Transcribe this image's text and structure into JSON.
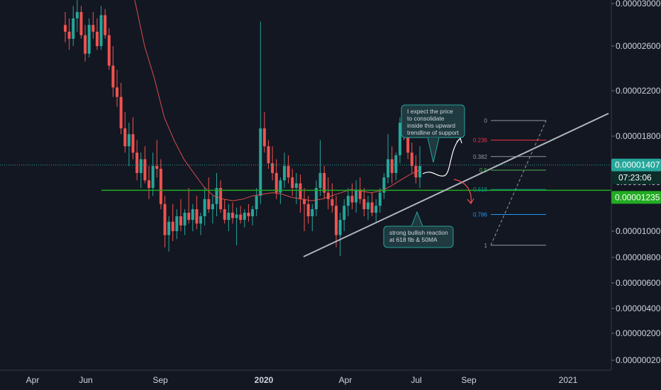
{
  "chart_data": {
    "type": "candlestick",
    "y_axis": {
      "labels": [
        "0.00003000",
        "0.00002600",
        "0.00002200",
        "0.00001800",
        "0.00001400",
        "0.00001000",
        "0.00000800",
        "0.00000600",
        "0.00000400",
        "0.00000200",
        "0.00000020"
      ],
      "values": [
        3e-05,
        2.6e-05,
        2.2e-05,
        1.8e-05,
        1.4e-05,
        1e-05,
        8e-06,
        6e-06,
        4e-06,
        2e-06,
        2e-07
      ],
      "scale": "log"
    },
    "x_axis": {
      "labels": [
        "Apr",
        "Jun",
        "Sep",
        "2020",
        "Apr",
        "Jul",
        "Sep",
        "2021"
      ],
      "bold": [
        false,
        false,
        false,
        true,
        false,
        false,
        false,
        false
      ]
    },
    "grid": false,
    "colors": {
      "background": "#131722",
      "up": "#26a69a",
      "down": "#ef5350",
      "ma": "#ef5350",
      "support": "#b2b5be",
      "level_green": "#22ab22",
      "price_teal": "#26a69a"
    },
    "current_price": {
      "value": 1.407e-05,
      "label": "0.00001407",
      "countdown": "07:23:06"
    },
    "horizontal_level": {
      "value": 1.235e-05,
      "label": "0.00001235"
    },
    "fibonacci": {
      "levels": [
        {
          "ratio": "0",
          "value": 1.77e-05,
          "color": "#9598a1"
        },
        {
          "ratio": "0.236",
          "value": 1.6e-05,
          "color": "#f23645"
        },
        {
          "ratio": "0.382",
          "value": 1.47e-05,
          "color": "#9598a1"
        },
        {
          "ratio": "0.5",
          "value": 1.37e-05,
          "color": "#4caf50"
        },
        {
          "ratio": "0.618",
          "value": 1.24e-05,
          "color": "#089981"
        },
        {
          "ratio": "0.786",
          "value": 1.09e-05,
          "color": "#2196f3"
        },
        {
          "ratio": "1",
          "value": 9.3e-06,
          "color": "#9598a1"
        }
      ]
    },
    "annotations": [
      {
        "text": [
          "I expect the price",
          "to consolidate",
          "inside this upward",
          "trendline of support"
        ]
      },
      {
        "text": [
          "strong bullish reaction",
          "at 618 fib & 50MA"
        ]
      }
    ],
    "candles": [
      [
        2.9e-05,
        3.1e-05,
        2.65e-05,
        2.8e-05
      ],
      [
        2.8e-05,
        3e-05,
        2.55e-05,
        2.7e-05
      ],
      [
        2.7e-05,
        3.2e-05,
        2.6e-05,
        3e-05
      ],
      [
        3e-05,
        3.3e-05,
        2.8e-05,
        3.1e-05
      ],
      [
        3.1e-05,
        3.2e-05,
        2.7e-05,
        2.75e-05
      ],
      [
        2.75e-05,
        2.9e-05,
        2.4e-05,
        2.5e-05
      ],
      [
        2.5e-05,
        3e-05,
        2.45e-05,
        2.9e-05
      ],
      [
        2.9e-05,
        3.1e-05,
        2.7e-05,
        2.8e-05
      ],
      [
        2.8e-05,
        3e-05,
        2.55e-05,
        2.6e-05
      ],
      [
        2.6e-05,
        3.2e-05,
        2.55e-05,
        3.05e-05
      ],
      [
        3.05e-05,
        3.15e-05,
        2.7e-05,
        2.75e-05
      ],
      [
        2.75e-05,
        2.85e-05,
        2.3e-05,
        2.35e-05
      ],
      [
        2.35e-05,
        2.6e-05,
        2e-05,
        2.1e-05
      ],
      [
        2.1e-05,
        2.3e-05,
        1.9e-05,
        2e-05
      ],
      [
        2e-05,
        2.15e-05,
        1.65e-05,
        1.7e-05
      ],
      [
        1.7e-05,
        1.85e-05,
        1.5e-05,
        1.55e-05
      ],
      [
        1.55e-05,
        1.75e-05,
        1.4e-05,
        1.65e-05
      ],
      [
        1.65e-05,
        1.8e-05,
        1.45e-05,
        1.5e-05
      ],
      [
        1.5e-05,
        1.6e-05,
        1.3e-05,
        1.35e-05
      ],
      [
        1.35e-05,
        1.5e-05,
        1.25e-05,
        1.45e-05
      ],
      [
        1.45e-05,
        1.55e-05,
        1.28e-05,
        1.3e-05
      ],
      [
        1.3e-05,
        1.4e-05,
        1.18e-05,
        1.25e-05
      ],
      [
        1.25e-05,
        1.5e-05,
        1.2e-05,
        1.4e-05
      ],
      [
        1.4e-05,
        1.6e-05,
        1.32e-05,
        1.38e-05
      ],
      [
        1.38e-05,
        1.45e-05,
        1.12e-05,
        1.15e-05
      ],
      [
        1.15e-05,
        1.2e-05,
        9.2e-06,
        9.8e-06
      ],
      [
        9.8e-06,
        1.08e-05,
        9e-06,
        1.05e-05
      ],
      [
        1.05e-05,
        1.15e-05,
        9.5e-06,
        1e-05
      ],
      [
        1e-05,
        1.12e-05,
        9.6e-06,
        1.08e-05
      ],
      [
        1.08e-05,
        1.18e-05,
        1e-05,
        1.03e-05
      ],
      [
        1.03e-05,
        1.12e-05,
        9.8e-06,
        1.1e-05
      ],
      [
        1.1e-05,
        1.25e-05,
        1.04e-05,
        1.06e-05
      ],
      [
        1.06e-05,
        1.15e-05,
        1e-05,
        1.12e-05
      ],
      [
        1.12e-05,
        1.2e-05,
        1.01e-05,
        1.04e-05
      ],
      [
        1.04e-05,
        1.1e-05,
        9.8e-06,
        1.08e-05
      ],
      [
        1.08e-05,
        1.25e-05,
        1.03e-05,
        1.18e-05
      ],
      [
        1.18e-05,
        1.32e-05,
        1.1e-05,
        1.12e-05
      ],
      [
        1.12e-05,
        1.2e-05,
        1.04e-05,
        1.15e-05
      ],
      [
        1.15e-05,
        1.35e-05,
        1.08e-05,
        1.25e-05
      ],
      [
        1.25e-05,
        1.3e-05,
        1.1e-05,
        1.12e-05
      ],
      [
        1.12e-05,
        1.18e-05,
        1.04e-05,
        1.06e-05
      ],
      [
        1.06e-05,
        1.15e-05,
        1e-05,
        1.1e-05
      ],
      [
        1.1e-05,
        1.16e-05,
        1.04e-05,
        1.07e-05
      ],
      [
        1.07e-05,
        1.13e-05,
        9.3e-06,
        1.09e-05
      ],
      [
        1.09e-05,
        1.14e-05,
        1.04e-05,
        1.06e-05
      ],
      [
        1.06e-05,
        1.12e-05,
        1.02e-05,
        1.1e-05
      ],
      [
        1.1e-05,
        1.15e-05,
        1.05e-05,
        1.08e-05
      ],
      [
        1.08e-05,
        1.14e-05,
        1.03e-05,
        1.12e-05
      ],
      [
        1.12e-05,
        1.25e-05,
        1.08e-05,
        1.2e-05
      ],
      [
        1.2e-05,
        2.95e-05,
        1.15e-05,
        1.7e-05
      ],
      [
        1.7e-05,
        1.85e-05,
        1.5e-05,
        1.55e-05
      ],
      [
        1.55e-05,
        1.6e-05,
        1.38e-05,
        1.42e-05
      ],
      [
        1.42e-05,
        1.55e-05,
        1.3e-05,
        1.35e-05
      ],
      [
        1.35e-05,
        1.45e-05,
        1.18e-05,
        1.22e-05
      ],
      [
        1.22e-05,
        1.32e-05,
        1.15e-05,
        1.3e-05
      ],
      [
        1.3e-05,
        1.5e-05,
        1.25e-05,
        1.4e-05
      ],
      [
        1.4e-05,
        1.48e-05,
        1.28e-05,
        1.32e-05
      ],
      [
        1.32e-05,
        1.38e-05,
        1.2e-05,
        1.25e-05
      ],
      [
        1.25e-05,
        1.35e-05,
        1.15e-05,
        1.28e-05
      ],
      [
        1.28e-05,
        1.34e-05,
        1.1e-05,
        1.18e-05
      ],
      [
        1.18e-05,
        1.25e-05,
        1e-05,
        1.15e-05
      ],
      [
        1.15e-05,
        1.2e-05,
        1.04e-05,
        1.08e-05
      ],
      [
        1.08e-05,
        1.15e-05,
        1e-05,
        1.12e-05
      ],
      [
        1.12e-05,
        1.3e-05,
        1.08e-05,
        1.25e-05
      ],
      [
        1.25e-05,
        1.6e-05,
        1.2e-05,
        1.35e-05
      ],
      [
        1.35e-05,
        1.4e-05,
        1.18e-05,
        1.22e-05
      ],
      [
        1.22e-05,
        1.32e-05,
        1.12e-05,
        1.18e-05
      ],
      [
        1.18e-05,
        1.28e-05,
        1.1e-05,
        1.14e-05
      ],
      [
        1.14e-05,
        1.2e-05,
        9.2e-06,
        9.8e-06
      ],
      [
        9.8e-06,
        1.1e-05,
        8.8e-06,
        1.06e-05
      ],
      [
        1.06e-05,
        1.18e-05,
        1e-05,
        1.14e-05
      ],
      [
        1.14e-05,
        1.25e-05,
        1.08e-05,
        1.2e-05
      ],
      [
        1.2e-05,
        1.28e-05,
        1.12e-05,
        1.16e-05
      ],
      [
        1.16e-05,
        1.3e-05,
        1.1e-05,
        1.24e-05
      ],
      [
        1.24e-05,
        1.32e-05,
        1.15e-05,
        1.18e-05
      ],
      [
        1.18e-05,
        1.25e-05,
        1.08e-05,
        1.12e-05
      ],
      [
        1.12e-05,
        1.2e-05,
        1.06e-05,
        1.16e-05
      ],
      [
        1.16e-05,
        1.22e-05,
        1.08e-05,
        1.1e-05
      ],
      [
        1.1e-05,
        1.18e-05,
        1.05e-05,
        1.14e-05
      ],
      [
        1.14e-05,
        1.25e-05,
        1.1e-05,
        1.22e-05
      ],
      [
        1.22e-05,
        1.35e-05,
        1.18e-05,
        1.32e-05
      ],
      [
        1.32e-05,
        1.65e-05,
        1.28e-05,
        1.45e-05
      ],
      [
        1.45e-05,
        1.55e-05,
        1.28e-05,
        1.35e-05
      ],
      [
        1.35e-05,
        1.5e-05,
        1.3e-05,
        1.48e-05
      ],
      [
        1.48e-05,
        1.8e-05,
        1.42e-05,
        1.75e-05
      ],
      [
        1.75e-05,
        1.85e-05,
        1.6e-05,
        1.65e-05
      ],
      [
        1.65e-05,
        1.7e-05,
        1.45e-05,
        1.5e-05
      ],
      [
        1.5e-05,
        1.58e-05,
        1.35e-05,
        1.4e-05
      ],
      [
        1.4e-05,
        1.48e-05,
        1.28e-05,
        1.32e-05
      ],
      [
        1.32e-05,
        1.55e-05,
        1.25e-05,
        1.4e-05
      ]
    ],
    "ma50": [
      3.3e-05,
      2.6e-05,
      2.2e-05,
      1.8e-05,
      1.6e-05,
      1.45e-05,
      1.35e-05,
      1.26e-05,
      1.2e-05,
      1.18e-05,
      1.17e-05,
      1.18e-05,
      1.2e-05,
      1.21e-05,
      1.22e-05,
      1.21e-05,
      1.19e-05,
      1.18e-05,
      1.17e-05,
      1.18e-05,
      1.2e-05,
      1.22e-05,
      1.24e-05,
      1.23e-05,
      1.22e-05,
      1.23e-05,
      1.26e-05,
      1.3e-05,
      1.34e-05,
      1.37e-05
    ]
  }
}
